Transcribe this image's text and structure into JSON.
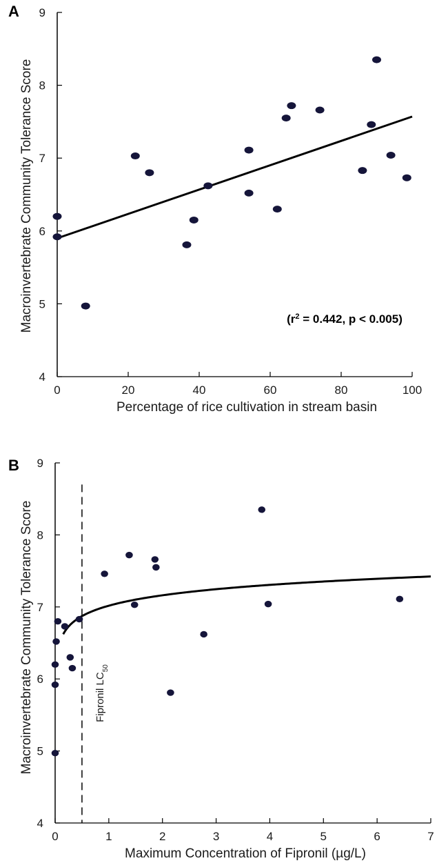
{
  "chart_data": [
    {
      "type": "scatter",
      "panel": "A",
      "xlabel": "Percentage of rice cultivation in stream basin",
      "ylabel": "Macroinvertebrate Community Tolerance Score",
      "xlim": [
        0,
        100
      ],
      "ylim": [
        4,
        9
      ],
      "xticks": [
        0,
        20,
        40,
        60,
        80,
        100
      ],
      "yticks": [
        4,
        5,
        6,
        7,
        8,
        9
      ],
      "points": [
        {
          "x": 0,
          "y": 6.2
        },
        {
          "x": 0,
          "y": 5.92
        },
        {
          "x": 8,
          "y": 4.97
        },
        {
          "x": 22,
          "y": 7.03
        },
        {
          "x": 26,
          "y": 6.8
        },
        {
          "x": 36.5,
          "y": 5.81
        },
        {
          "x": 38.5,
          "y": 6.15
        },
        {
          "x": 42.5,
          "y": 6.62
        },
        {
          "x": 54,
          "y": 7.11
        },
        {
          "x": 54,
          "y": 6.52
        },
        {
          "x": 62,
          "y": 6.3
        },
        {
          "x": 64.5,
          "y": 7.55
        },
        {
          "x": 66,
          "y": 7.72
        },
        {
          "x": 74,
          "y": 7.66
        },
        {
          "x": 86,
          "y": 6.83
        },
        {
          "x": 88.5,
          "y": 7.46
        },
        {
          "x": 90,
          "y": 8.35
        },
        {
          "x": 94,
          "y": 7.04
        },
        {
          "x": 98.5,
          "y": 6.73
        }
      ],
      "fit": {
        "type": "linear",
        "x": [
          0,
          100
        ],
        "y": [
          5.9,
          7.57
        ]
      },
      "annotation": {
        "prefix": "(r",
        "sup": "2",
        "suffix": " = 0.442, p < 0.005)"
      },
      "grid": false,
      "legend": "none"
    },
    {
      "type": "scatter",
      "panel": "B",
      "xlabel": "Maximum Concentration of Fipronil (µg/L)",
      "ylabel": "Macroinvertebrate Community Tolerance Score",
      "xlim": [
        0,
        7
      ],
      "ylim": [
        4,
        9
      ],
      "xticks": [
        0,
        1,
        2,
        3,
        4,
        5,
        6,
        7
      ],
      "yticks": [
        4,
        5,
        6,
        7,
        8,
        9
      ],
      "points": [
        {
          "x": 0,
          "y": 4.97
        },
        {
          "x": 0,
          "y": 5.92
        },
        {
          "x": 0,
          "y": 6.2
        },
        {
          "x": 0.02,
          "y": 6.52
        },
        {
          "x": 0.05,
          "y": 6.8
        },
        {
          "x": 0.18,
          "y": 6.73
        },
        {
          "x": 0.28,
          "y": 6.3
        },
        {
          "x": 0.32,
          "y": 6.15
        },
        {
          "x": 0.45,
          "y": 6.83
        },
        {
          "x": 0.92,
          "y": 7.46
        },
        {
          "x": 1.38,
          "y": 7.72
        },
        {
          "x": 1.48,
          "y": 7.03
        },
        {
          "x": 1.86,
          "y": 7.66
        },
        {
          "x": 1.88,
          "y": 7.55
        },
        {
          "x": 2.15,
          "y": 5.81
        },
        {
          "x": 2.77,
          "y": 6.62
        },
        {
          "x": 3.85,
          "y": 8.35
        },
        {
          "x": 3.97,
          "y": 7.04
        },
        {
          "x": 6.42,
          "y": 7.11
        }
      ],
      "fit": {
        "type": "logarithmic",
        "x_start": 0.15,
        "x_end": 7,
        "a": 7.017,
        "b": 0.2085
      },
      "vline": {
        "x": 0.5,
        "label": "Fipronil LC",
        "label_sub": "50"
      },
      "grid": false,
      "legend": "none"
    }
  ]
}
